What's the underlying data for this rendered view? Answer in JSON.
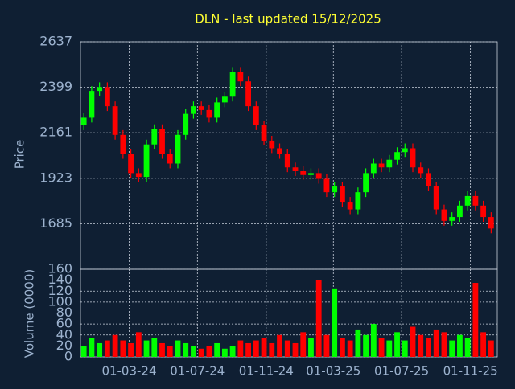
{
  "chart_data": [
    {
      "type": "candlestick",
      "title": "DLN - last updated 15/12/2025",
      "ylabel": "Price",
      "x": [
        "2023-12-11",
        "2023-12-25",
        "2024-01-08",
        "2024-01-22",
        "2024-02-05",
        "2024-02-19",
        "2024-03-04",
        "2024-03-18",
        "2024-04-01",
        "2024-04-15",
        "2024-04-29",
        "2024-05-13",
        "2024-05-27",
        "2024-06-10",
        "2024-06-24",
        "2024-07-08",
        "2024-07-22",
        "2024-08-05",
        "2024-08-19",
        "2024-09-02",
        "2024-09-16",
        "2024-09-30",
        "2024-10-14",
        "2024-10-28",
        "2024-11-11",
        "2024-11-25",
        "2024-12-09",
        "2024-12-23",
        "2025-01-06",
        "2025-01-20",
        "2025-02-03",
        "2025-02-17",
        "2025-03-03",
        "2025-03-17",
        "2025-03-31",
        "2025-04-14",
        "2025-04-28",
        "2025-05-12",
        "2025-05-26",
        "2025-06-09",
        "2025-06-23",
        "2025-07-07",
        "2025-07-21",
        "2025-08-04",
        "2025-08-18",
        "2025-09-01",
        "2025-09-15",
        "2025-09-29",
        "2025-10-13",
        "2025-10-27",
        "2025-11-10",
        "2025-11-24",
        "2025-12-08"
      ],
      "open": [
        2200,
        2240,
        2380,
        2400,
        2300,
        2150,
        2050,
        1950,
        1930,
        2100,
        2180,
        2050,
        2000,
        2150,
        2260,
        2300,
        2280,
        2240,
        2320,
        2350,
        2480,
        2430,
        2300,
        2200,
        2120,
        2080,
        2050,
        1980,
        1960,
        1940,
        1950,
        1920,
        1850,
        1880,
        1800,
        1760,
        1850,
        1950,
        2000,
        1980,
        2020,
        2060,
        2080,
        1980,
        1950,
        1880,
        1760,
        1700,
        1720,
        1780,
        1830,
        1780,
        1720
      ],
      "high": [
        2265,
        2405,
        2425,
        2425,
        2325,
        2175,
        2075,
        1975,
        2125,
        2205,
        2205,
        2075,
        2175,
        2285,
        2325,
        2325,
        2305,
        2345,
        2375,
        2505,
        2505,
        2455,
        2325,
        2225,
        2145,
        2105,
        2075,
        2005,
        1985,
        1975,
        1975,
        1945,
        1905,
        1905,
        1825,
        1875,
        1975,
        2025,
        2025,
        2045,
        2085,
        2105,
        2105,
        2005,
        1975,
        1905,
        1785,
        1745,
        1805,
        1855,
        1855,
        1805,
        1745
      ],
      "low": [
        2175,
        2215,
        2355,
        2275,
        2125,
        2025,
        1925,
        1905,
        1905,
        2075,
        2025,
        1975,
        1975,
        2125,
        2235,
        2255,
        2215,
        2215,
        2295,
        2325,
        2405,
        2275,
        2175,
        2095,
        2055,
        2025,
        1955,
        1935,
        1915,
        1915,
        1895,
        1825,
        1825,
        1775,
        1735,
        1735,
        1825,
        1925,
        1955,
        1955,
        1995,
        2035,
        1955,
        1925,
        1855,
        1735,
        1675,
        1675,
        1695,
        1755,
        1755,
        1695,
        1635
      ],
      "close": [
        2240,
        2380,
        2400,
        2300,
        2150,
        2050,
        1950,
        1930,
        2100,
        2180,
        2050,
        2000,
        2150,
        2260,
        2300,
        2280,
        2240,
        2320,
        2350,
        2480,
        2430,
        2300,
        2200,
        2120,
        2080,
        2050,
        1980,
        1960,
        1940,
        1950,
        1920,
        1850,
        1880,
        1800,
        1760,
        1850,
        1950,
        2000,
        1980,
        2020,
        2060,
        2080,
        1980,
        1950,
        1880,
        1760,
        1700,
        1720,
        1780,
        1830,
        1780,
        1720,
        1660
      ],
      "up_color": "#00ff00",
      "down_color": "#ff0000",
      "xlim": [
        "2023-12-05",
        "2025-12-19"
      ],
      "ylim": [
        1447,
        2637
      ],
      "yticks": [
        1685,
        1923,
        2161,
        2399,
        2637
      ],
      "grid": true
    },
    {
      "type": "volume",
      "ylabel": "Volume (0000)",
      "values": [
        20,
        35,
        25,
        30,
        40,
        30,
        25,
        45,
        30,
        35,
        25,
        20,
        30,
        25,
        20,
        15,
        20,
        25,
        15,
        20,
        30,
        25,
        30,
        35,
        25,
        40,
        30,
        25,
        45,
        35,
        140,
        40,
        125,
        35,
        30,
        50,
        40,
        60,
        35,
        30,
        45,
        30,
        55,
        40,
        35,
        50,
        45,
        30,
        40,
        35,
        135,
        45,
        30
      ],
      "ylim": [
        0,
        160
      ],
      "yticks": [
        0,
        20,
        40,
        60,
        80,
        100,
        120,
        140,
        160
      ],
      "xticks": [
        {
          "value": "2024-03-01",
          "label": "01-03-24"
        },
        {
          "value": "2024-07-01",
          "label": "01-07-24"
        },
        {
          "value": "2024-11-01",
          "label": "01-11-24"
        },
        {
          "value": "2025-03-01",
          "label": "01-03-25"
        },
        {
          "value": "2025-07-01",
          "label": "01-07-25"
        },
        {
          "value": "2025-11-01",
          "label": "01-11-25"
        }
      ],
      "grid": true
    }
  ]
}
